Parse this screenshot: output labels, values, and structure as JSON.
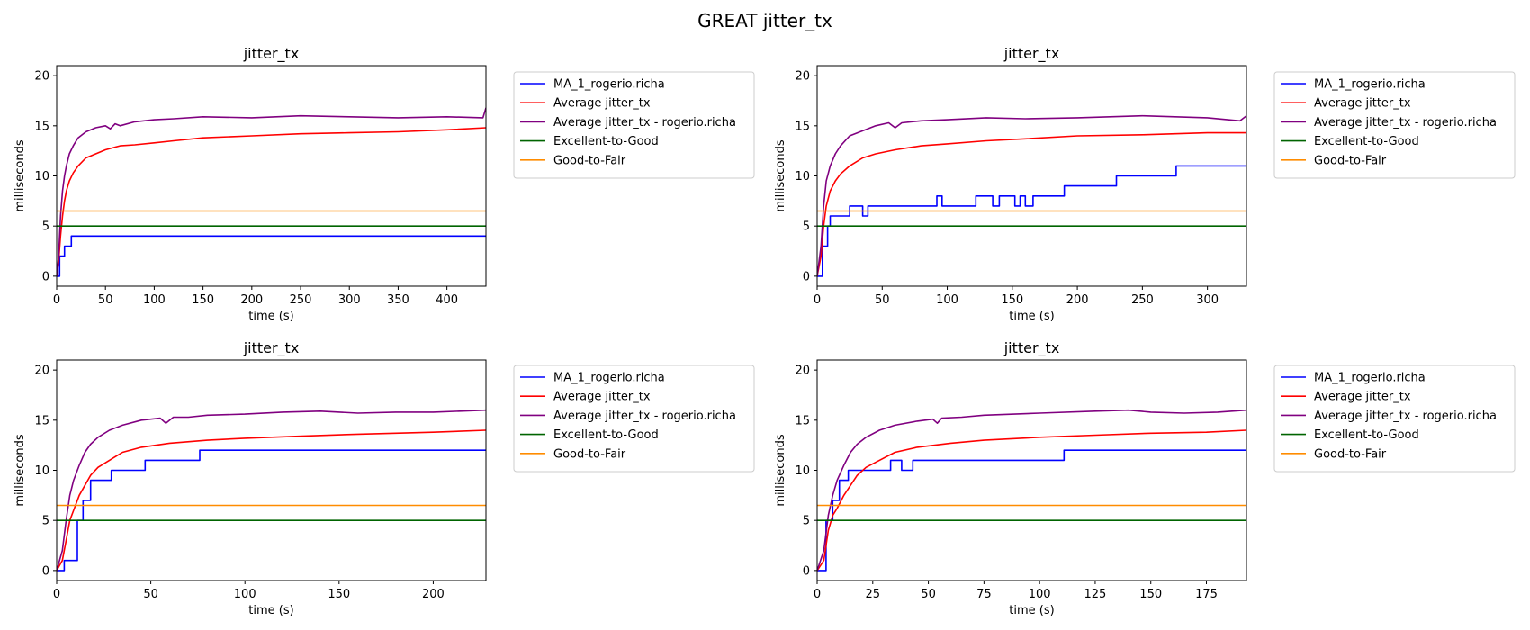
{
  "figure": {
    "title": "GREAT jitter_tx"
  },
  "colors": {
    "ma": "#0000ff",
    "average": "#ff0000",
    "average_user": "#800080",
    "excellent_to_good": "#006400",
    "good_to_fair": "#ff8c00"
  },
  "chart_data": [
    {
      "type": "line",
      "title": "jitter_tx",
      "xlabel": "time (s)",
      "ylabel": "milliseconds",
      "xlim": [
        0,
        440
      ],
      "ylim": [
        -1,
        21
      ],
      "xticks": [
        0,
        50,
        100,
        150,
        200,
        250,
        300,
        350,
        400
      ],
      "yticks": [
        0,
        5,
        10,
        15,
        20
      ],
      "legend": "outside-right",
      "series": [
        {
          "name": "MA_1_rogerio.richa",
          "color": "#0000ff",
          "x": [
            0,
            3,
            3,
            8,
            8,
            10,
            10,
            15,
            15,
            440
          ],
          "y": [
            0,
            0,
            2,
            2,
            3,
            3,
            3,
            3,
            4,
            4
          ]
        },
        {
          "name": "Average jitter_tx",
          "color": "#ff0000",
          "x": [
            0,
            2,
            4,
            6,
            8,
            10,
            13,
            17,
            22,
            30,
            40,
            50,
            65,
            80,
            100,
            120,
            150,
            200,
            250,
            300,
            350,
            400,
            440
          ],
          "y": [
            0,
            1.5,
            4,
            6,
            7.5,
            8.5,
            9.5,
            10.3,
            11,
            11.8,
            12.2,
            12.6,
            13,
            13.1,
            13.3,
            13.5,
            13.8,
            14,
            14.2,
            14.3,
            14.4,
            14.6,
            14.8
          ]
        },
        {
          "name": "Average jitter_tx - rogerio.richa",
          "color": "#800080",
          "x": [
            0,
            2,
            4,
            6,
            8,
            10,
            13,
            17,
            22,
            30,
            40,
            50,
            55,
            60,
            65,
            80,
            100,
            120,
            150,
            200,
            250,
            300,
            350,
            400,
            437,
            440
          ],
          "y": [
            0,
            2,
            6,
            8.5,
            10,
            11,
            12.2,
            13,
            13.8,
            14.4,
            14.8,
            15,
            14.7,
            15.2,
            15,
            15.4,
            15.6,
            15.7,
            15.9,
            15.8,
            16,
            15.9,
            15.8,
            15.9,
            15.8,
            16.8
          ]
        },
        {
          "name": "Excellent-to-Good",
          "color": "#006400",
          "x": [
            0,
            440
          ],
          "y": [
            5,
            5
          ]
        },
        {
          "name": "Good-to-Fair",
          "color": "#ff8c00",
          "x": [
            0,
            440
          ],
          "y": [
            6.5,
            6.5
          ]
        }
      ]
    },
    {
      "type": "line",
      "title": "jitter_tx",
      "xlabel": "time (s)",
      "ylabel": "milliseconds",
      "xlim": [
        0,
        330
      ],
      "ylim": [
        -1,
        21
      ],
      "xticks": [
        0,
        50,
        100,
        150,
        200,
        250,
        300
      ],
      "yticks": [
        0,
        5,
        10,
        15,
        20
      ],
      "legend": "outside-right",
      "series": [
        {
          "name": "MA_1_rogerio.richa",
          "color": "#0000ff",
          "x": [
            0,
            4,
            4,
            8,
            8,
            10,
            10,
            25,
            25,
            35,
            35,
            39,
            39,
            40,
            40,
            92,
            92,
            96,
            96,
            122,
            122,
            132,
            132,
            135,
            135,
            140,
            140,
            152,
            152,
            156,
            156,
            160,
            160,
            166,
            166,
            190,
            190,
            230,
            230,
            276,
            276,
            330
          ],
          "y": [
            0,
            0,
            3,
            3,
            5,
            5,
            6,
            6,
            7,
            7,
            6,
            6,
            7,
            7,
            7,
            7,
            8,
            8,
            7,
            7,
            8,
            8,
            8,
            8,
            7,
            7,
            8,
            8,
            7,
            7,
            8,
            8,
            7,
            7,
            8,
            8,
            9,
            9,
            10,
            10,
            11,
            11
          ]
        },
        {
          "name": "Average jitter_tx",
          "color": "#ff0000",
          "x": [
            0,
            3,
            5,
            7,
            10,
            14,
            18,
            25,
            35,
            45,
            60,
            80,
            100,
            130,
            160,
            200,
            250,
            300,
            330
          ],
          "y": [
            0,
            2,
            5,
            7,
            8.5,
            9.5,
            10.2,
            11,
            11.8,
            12.2,
            12.6,
            13,
            13.2,
            13.5,
            13.7,
            14,
            14.1,
            14.3,
            14.3
          ]
        },
        {
          "name": "Average jitter_tx - rogerio.richa",
          "color": "#800080",
          "x": [
            0,
            3,
            5,
            7,
            10,
            14,
            18,
            25,
            35,
            45,
            55,
            60,
            65,
            80,
            100,
            130,
            160,
            200,
            250,
            300,
            325,
            330
          ],
          "y": [
            0,
            3,
            7,
            9.5,
            11,
            12.2,
            13,
            14,
            14.5,
            15,
            15.3,
            14.8,
            15.3,
            15.5,
            15.6,
            15.8,
            15.7,
            15.8,
            16,
            15.8,
            15.5,
            16
          ]
        },
        {
          "name": "Excellent-to-Good",
          "color": "#006400",
          "x": [
            0,
            330
          ],
          "y": [
            5,
            5
          ]
        },
        {
          "name": "Good-to-Fair",
          "color": "#ff8c00",
          "x": [
            0,
            330
          ],
          "y": [
            6.5,
            6.5
          ]
        }
      ]
    },
    {
      "type": "line",
      "title": "jitter_tx",
      "xlabel": "time (s)",
      "ylabel": "milliseconds",
      "xlim": [
        0,
        228
      ],
      "ylim": [
        -1,
        21
      ],
      "xticks": [
        0,
        50,
        100,
        150,
        200
      ],
      "yticks": [
        0,
        5,
        10,
        15,
        20
      ],
      "legend": "outside-right",
      "series": [
        {
          "name": "MA_1_rogerio.richa",
          "color": "#0000ff",
          "x": [
            0,
            4,
            4,
            11,
            11,
            14,
            14,
            18,
            18,
            25,
            25,
            29,
            29,
            47,
            47,
            76,
            76,
            228
          ],
          "y": [
            0,
            0,
            1,
            1,
            5,
            5,
            7,
            7,
            9,
            9,
            9,
            9,
            10,
            10,
            11,
            11,
            12,
            12
          ]
        },
        {
          "name": "Average jitter_tx",
          "color": "#ff0000",
          "x": [
            0,
            3,
            5,
            7,
            9,
            12,
            15,
            18,
            22,
            28,
            35,
            45,
            60,
            80,
            100,
            130,
            160,
            200,
            228
          ],
          "y": [
            0,
            1,
            3,
            5,
            6,
            7.5,
            8.5,
            9.5,
            10.3,
            11,
            11.8,
            12.3,
            12.7,
            13,
            13.2,
            13.4,
            13.6,
            13.8,
            14
          ]
        },
        {
          "name": "Average jitter_tx - rogerio.richa",
          "color": "#800080",
          "x": [
            0,
            3,
            5,
            7,
            9,
            12,
            15,
            18,
            22,
            28,
            35,
            45,
            55,
            58,
            62,
            70,
            80,
            100,
            120,
            140,
            160,
            180,
            200,
            228
          ],
          "y": [
            0,
            2,
            5,
            7.5,
            9,
            10.5,
            11.8,
            12.6,
            13.3,
            14,
            14.5,
            15,
            15.2,
            14.7,
            15.3,
            15.3,
            15.5,
            15.6,
            15.8,
            15.9,
            15.7,
            15.8,
            15.8,
            16
          ]
        },
        {
          "name": "Excellent-to-Good",
          "color": "#006400",
          "x": [
            0,
            228
          ],
          "y": [
            5,
            5
          ]
        },
        {
          "name": "Good-to-Fair",
          "color": "#ff8c00",
          "x": [
            0,
            228
          ],
          "y": [
            6.5,
            6.5
          ]
        }
      ]
    },
    {
      "type": "line",
      "title": "jitter_tx",
      "xlabel": "time (s)",
      "ylabel": "milliseconds",
      "xlim": [
        0,
        193
      ],
      "ylim": [
        -1,
        21
      ],
      "xticks": [
        0,
        25,
        50,
        75,
        100,
        125,
        150,
        175
      ],
      "yticks": [
        0,
        5,
        10,
        15,
        20
      ],
      "legend": "outside-right",
      "series": [
        {
          "name": "MA_1_rogerio.richa",
          "color": "#0000ff",
          "x": [
            0,
            4,
            4,
            7,
            7,
            10,
            10,
            14,
            14,
            17,
            17,
            33,
            33,
            38,
            38,
            43,
            43,
            111,
            111,
            193
          ],
          "y": [
            0,
            0,
            5,
            5,
            7,
            7,
            9,
            9,
            10,
            10,
            10,
            10,
            11,
            11,
            10,
            10,
            11,
            11,
            12,
            12
          ]
        },
        {
          "name": "Average jitter_tx",
          "color": "#ff0000",
          "x": [
            0,
            3,
            5,
            7,
            9,
            12,
            15,
            18,
            22,
            28,
            35,
            45,
            60,
            75,
            100,
            125,
            150,
            175,
            193
          ],
          "y": [
            0,
            1,
            4,
            5.5,
            6.2,
            7.5,
            8.5,
            9.5,
            10.3,
            11,
            11.8,
            12.3,
            12.7,
            13,
            13.3,
            13.5,
            13.7,
            13.8,
            14
          ]
        },
        {
          "name": "Average jitter_tx - rogerio.richa",
          "color": "#800080",
          "x": [
            0,
            3,
            5,
            7,
            9,
            12,
            15,
            18,
            22,
            28,
            35,
            45,
            52,
            54,
            56,
            65,
            75,
            100,
            125,
            140,
            150,
            165,
            180,
            193
          ],
          "y": [
            0,
            2,
            5.5,
            7.5,
            9,
            10.5,
            11.8,
            12.6,
            13.3,
            14,
            14.5,
            14.9,
            15.1,
            14.7,
            15.2,
            15.3,
            15.5,
            15.7,
            15.9,
            16,
            15.8,
            15.7,
            15.8,
            16
          ]
        },
        {
          "name": "Excellent-to-Good",
          "color": "#006400",
          "x": [
            0,
            193
          ],
          "y": [
            5,
            5
          ]
        },
        {
          "name": "Good-to-Fair",
          "color": "#ff8c00",
          "x": [
            0,
            193
          ],
          "y": [
            6.5,
            6.5
          ]
        }
      ]
    }
  ]
}
